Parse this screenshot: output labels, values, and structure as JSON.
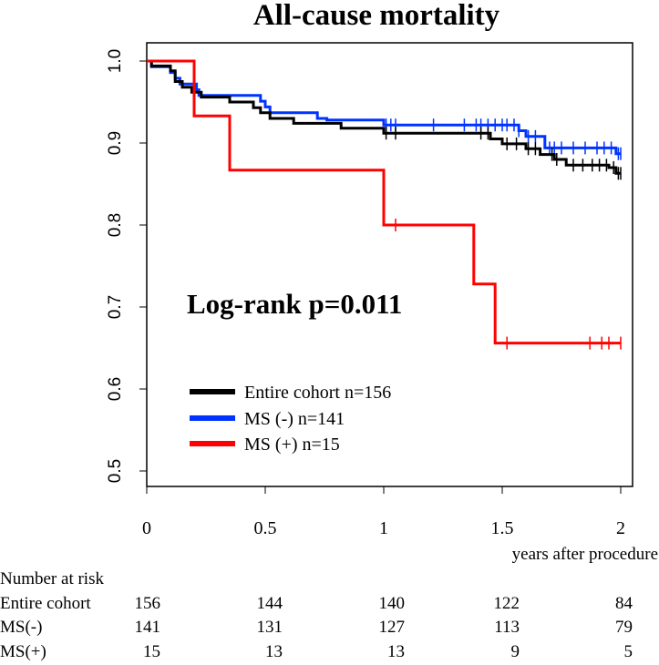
{
  "chart_data": {
    "type": "line",
    "step": true,
    "title": "All-cause mortality",
    "xlabel": "years after procedure",
    "ylabel": "",
    "xlim": [
      0,
      2
    ],
    "ylim": [
      0.5,
      1.0
    ],
    "x_ticks": [
      "0",
      "0.5",
      "1",
      "1.5",
      "2"
    ],
    "y_ticks": [
      "0.5",
      "0.6",
      "0.7",
      "0.8",
      "0.9",
      "1.0"
    ],
    "annotation": "Log-rank p=0.011",
    "legend_position": "bottom-left",
    "series": [
      {
        "name": "Entire cohort n=156",
        "color": "#000000",
        "points": [
          [
            0,
            1.0
          ],
          [
            0.02,
            0.994
          ],
          [
            0.1,
            0.988
          ],
          [
            0.12,
            0.975
          ],
          [
            0.15,
            0.968
          ],
          [
            0.19,
            0.962
          ],
          [
            0.23,
            0.956
          ],
          [
            0.35,
            0.95
          ],
          [
            0.45,
            0.943
          ],
          [
            0.48,
            0.937
          ],
          [
            0.52,
            0.93
          ],
          [
            0.62,
            0.924
          ],
          [
            0.74,
            0.924
          ],
          [
            0.82,
            0.918
          ],
          [
            1.0,
            0.912
          ],
          [
            1.42,
            0.912
          ],
          [
            1.45,
            0.905
          ],
          [
            1.5,
            0.899
          ],
          [
            1.6,
            0.893
          ],
          [
            1.66,
            0.886
          ],
          [
            1.72,
            0.88
          ],
          [
            1.77,
            0.873
          ],
          [
            1.95,
            0.87
          ],
          [
            1.98,
            0.863
          ],
          [
            2.0,
            0.863
          ]
        ],
        "censored": [
          1.01,
          1.05,
          1.41,
          1.44,
          1.52,
          1.56,
          1.61,
          1.64,
          1.71,
          1.73,
          1.8,
          1.84,
          1.88,
          1.91,
          1.94,
          1.97,
          1.99,
          2.0
        ]
      },
      {
        "name": "MS (-) n=141",
        "color": "#0033ff",
        "points": [
          [
            0,
            1.0
          ],
          [
            0.02,
            0.993
          ],
          [
            0.1,
            0.986
          ],
          [
            0.12,
            0.979
          ],
          [
            0.14,
            0.972
          ],
          [
            0.21,
            0.965
          ],
          [
            0.22,
            0.958
          ],
          [
            0.48,
            0.951
          ],
          [
            0.5,
            0.944
          ],
          [
            0.52,
            0.937
          ],
          [
            0.72,
            0.93
          ],
          [
            0.74,
            0.93
          ],
          [
            0.76,
            0.928
          ],
          [
            1.0,
            0.922
          ],
          [
            1.55,
            0.922
          ],
          [
            1.57,
            0.915
          ],
          [
            1.6,
            0.908
          ],
          [
            1.68,
            0.894
          ],
          [
            1.98,
            0.887
          ],
          [
            2.0,
            0.887
          ]
        ],
        "censored": [
          1.01,
          1.03,
          1.05,
          1.21,
          1.34,
          1.39,
          1.41,
          1.44,
          1.47,
          1.5,
          1.52,
          1.55,
          1.57,
          1.61,
          1.64,
          1.7,
          1.72,
          1.75,
          1.8,
          1.85,
          1.9,
          1.93,
          1.96,
          1.99,
          2.0
        ]
      },
      {
        "name": "MS (+) n=15",
        "color": "#ff0000",
        "points": [
          [
            0,
            1.0
          ],
          [
            0.2,
            1.0
          ],
          [
            0.2,
            0.933
          ],
          [
            0.35,
            0.933
          ],
          [
            0.35,
            0.867
          ],
          [
            1.0,
            0.867
          ],
          [
            1.0,
            0.8
          ],
          [
            1.38,
            0.8
          ],
          [
            1.38,
            0.728
          ],
          [
            1.47,
            0.728
          ],
          [
            1.47,
            0.656
          ],
          [
            2.0,
            0.656
          ]
        ],
        "censored": [
          1.05,
          1.52,
          1.87,
          1.92,
          1.95,
          2.0
        ]
      }
    ],
    "risk_table": {
      "header": "Number at risk",
      "rows": [
        {
          "label": "Entire cohort",
          "values": [
            "156",
            "144",
            "140",
            "122",
            "84"
          ]
        },
        {
          "label": "MS(-)",
          "values": [
            "141",
            "131",
            "127",
            "113",
            "79"
          ]
        },
        {
          "label": "MS(+)",
          "values": [
            "15",
            "13",
            "13",
            "9",
            "5"
          ]
        }
      ]
    }
  }
}
